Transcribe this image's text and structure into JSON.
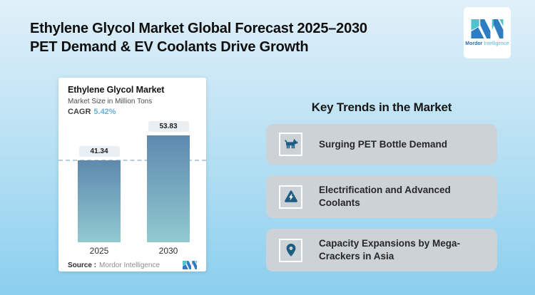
{
  "header": {
    "title_line1": "Ethylene Glycol Market Global Forecast 2025–2030",
    "title_line2": "PET Demand & EV Coolants Drive Growth"
  },
  "brand": {
    "name_bold": "Mordor",
    "name_light": "Intelligence",
    "blue": "#2e7cc2",
    "teal": "#4fc4ce"
  },
  "chart_card": {
    "title": "Ethylene Glycol Market",
    "subtitle": "Market Size in Million Tons",
    "cagr_label": "CAGR",
    "cagr_value": "5.42%",
    "source_label": "Source :",
    "source_value": "Mordor Intelligence"
  },
  "chart_data": {
    "type": "bar",
    "title": "Ethylene Glycol Market",
    "ylabel": "Market Size in Million Tons",
    "categories": [
      "2025",
      "2030"
    ],
    "values": [
      41.34,
      53.83
    ],
    "value_labels": [
      "41.34",
      "53.83"
    ],
    "cagr_percent": 5.42,
    "reference_line_at": 41.34,
    "grid": "single dashed reference line at 2025 level",
    "legend": "none",
    "bar_gradient_top": "#5d89ae",
    "bar_gradient_bottom": "#92cad1",
    "cagr_value_color": "#66b0d8"
  },
  "trends": {
    "heading": "Key Trends in the Market",
    "icon_color": "#1e5d81",
    "card_color": "#cdd2d6",
    "items": [
      {
        "icon": "dog-icon",
        "label": "Surging PET Bottle Demand"
      },
      {
        "icon": "warning-bolt-icon",
        "label": "Electrification and Advanced Coolants"
      },
      {
        "icon": "map-pin-icon",
        "label": "Capacity Expansions by Mega-Crackers in Asia"
      }
    ]
  },
  "colors": {
    "background_top": "#e0f0f9",
    "background_bottom": "#8bcfee",
    "title_text": "#0e0e0e",
    "pill_background": "#e9eff2",
    "dashed_line": "#b7cdd9"
  }
}
